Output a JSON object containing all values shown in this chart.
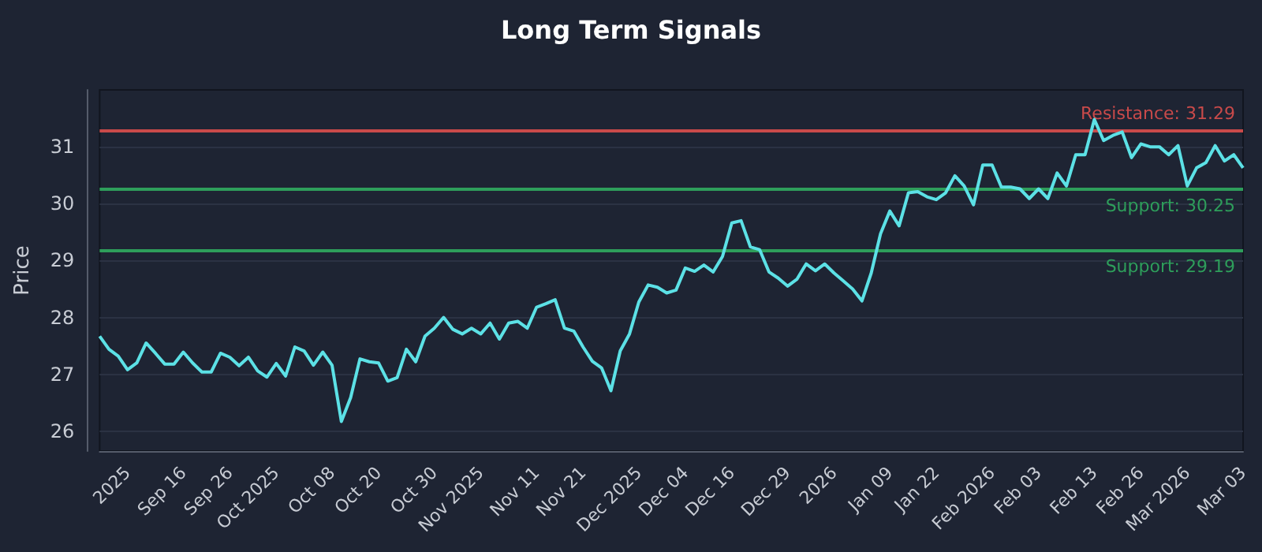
{
  "chart_data": {
    "type": "line",
    "title": "Long Term Signals",
    "ylabel": "Price",
    "categories": [
      null,
      null,
      null,
      "2025",
      null,
      null,
      null,
      null,
      null,
      "Sep 16",
      null,
      null,
      null,
      null,
      "Sep 26",
      null,
      null,
      null,
      null,
      "Oct 2025",
      null,
      null,
      null,
      null,
      null,
      "Oct 08",
      null,
      null,
      null,
      null,
      "Oct 20",
      null,
      null,
      null,
      null,
      null,
      "Oct 30",
      null,
      null,
      null,
      null,
      "Nov 2025",
      null,
      null,
      null,
      null,
      null,
      "Nov 11",
      null,
      null,
      null,
      null,
      "Nov 21",
      null,
      null,
      null,
      null,
      null,
      "Dec 2025",
      null,
      null,
      null,
      null,
      "Dec 04",
      null,
      null,
      null,
      null,
      "Dec 16",
      null,
      null,
      null,
      null,
      null,
      "Dec 29",
      null,
      null,
      null,
      null,
      "2026",
      null,
      null,
      null,
      null,
      null,
      "Jan 09",
      null,
      null,
      null,
      null,
      "Jan 22",
      null,
      null,
      null,
      null,
      null,
      "Feb 2026",
      null,
      null,
      null,
      null,
      "Feb 03",
      null,
      null,
      null,
      null,
      null,
      "Feb 13",
      null,
      null,
      null,
      null,
      "Feb 26",
      null,
      null,
      null,
      null,
      "Mar 2026",
      null,
      null,
      null,
      null,
      null,
      "Mar 03"
    ],
    "series": [
      {
        "color": "#5ce1e6",
        "values": [
          27.67,
          27.44,
          27.32,
          27.08,
          27.2,
          27.55,
          27.37,
          27.18,
          27.18,
          27.39,
          27.2,
          27.04,
          27.04,
          27.37,
          27.3,
          27.15,
          27.3,
          27.06,
          26.95,
          27.19,
          26.97,
          27.48,
          27.41,
          27.16,
          27.39,
          27.16,
          26.17,
          26.59,
          27.27,
          27.22,
          27.2,
          26.88,
          26.94,
          27.44,
          27.22,
          27.67,
          27.81,
          28.0,
          27.79,
          27.71,
          27.81,
          27.71,
          27.9,
          27.62,
          27.9,
          27.93,
          27.81,
          28.18,
          28.24,
          28.31,
          27.81,
          27.76,
          27.48,
          27.23,
          27.11,
          26.71,
          27.41,
          27.71,
          28.27,
          28.57,
          28.53,
          28.43,
          28.48,
          28.87,
          28.81,
          28.92,
          28.8,
          29.07,
          29.66,
          29.7,
          29.24,
          29.19,
          28.8,
          28.69,
          28.55,
          28.67,
          28.94,
          28.82,
          28.94,
          28.78,
          28.64,
          28.5,
          28.29,
          28.78,
          29.47,
          29.87,
          29.61,
          30.19,
          30.21,
          30.12,
          30.07,
          30.19,
          30.49,
          30.31,
          29.98,
          30.68,
          30.68,
          30.29,
          30.29,
          30.26,
          30.09,
          30.26,
          30.09,
          30.54,
          30.31,
          30.86,
          30.86,
          31.48,
          31.11,
          31.2,
          31.26,
          30.81,
          31.05,
          31.0,
          31.0,
          30.86,
          31.02,
          30.31,
          30.63,
          30.72,
          31.02,
          30.75,
          30.86,
          30.63
        ]
      }
    ],
    "ylim": [
      25.65,
      32.0
    ],
    "yticks": [
      26,
      27,
      28,
      29,
      30,
      31
    ],
    "grid": "y",
    "marker": "none",
    "line_style": "solid",
    "ref_lines": [
      {
        "axis": "y",
        "value": 31.29,
        "label": "Resistance: 31.29",
        "color": "#c94a4a"
      },
      {
        "axis": "y",
        "value": 30.25,
        "label": "Support: 30.25",
        "color": "#2e9e5b"
      },
      {
        "axis": "y",
        "value": 29.19,
        "label": "Support: 29.19",
        "color": "#2e9e5b"
      }
    ]
  }
}
